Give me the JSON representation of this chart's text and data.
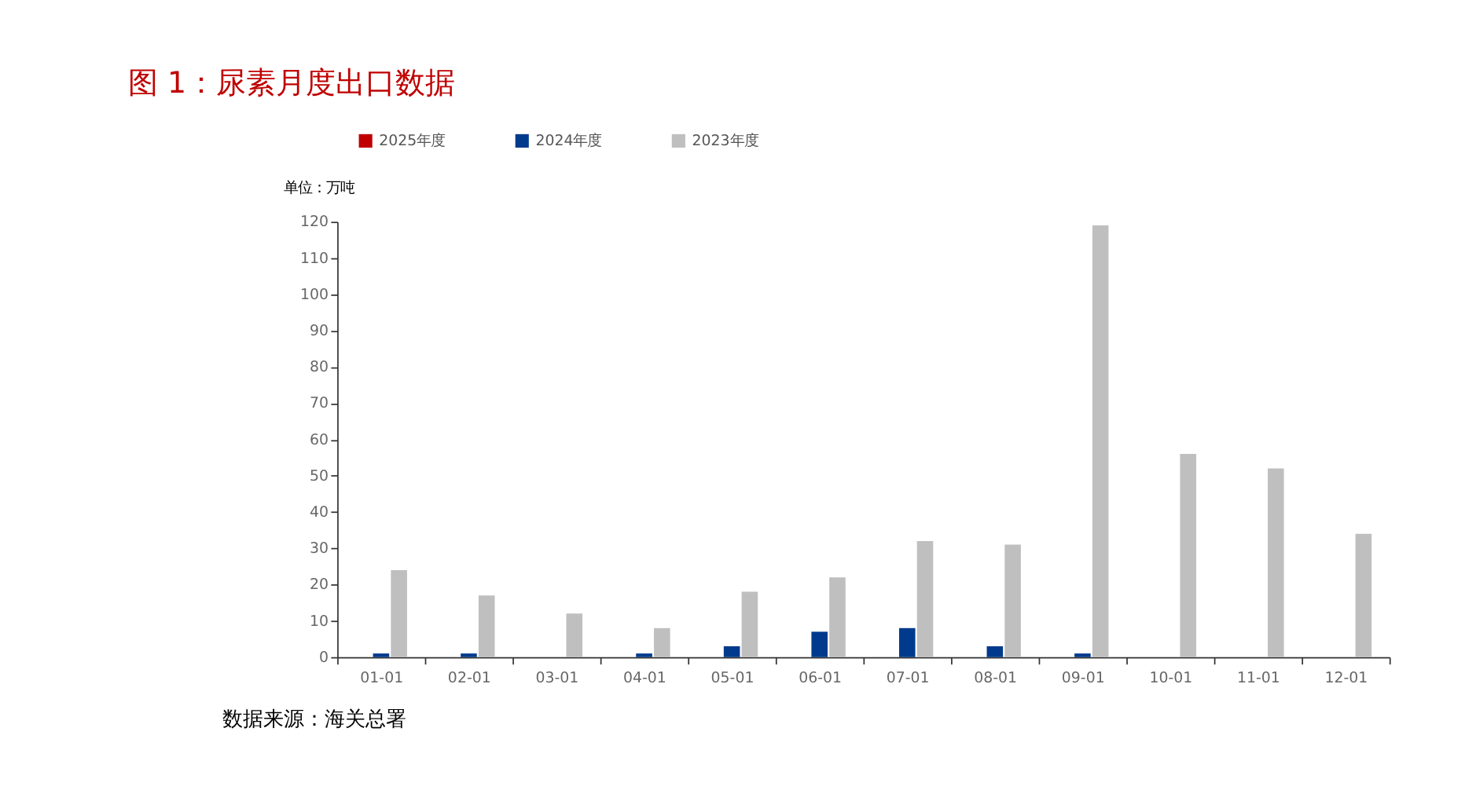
{
  "chart_data": {
    "type": "bar",
    "title": "图 1：尿素月度出口数据",
    "ylabel": "单位：万吨",
    "categories": [
      "01-01",
      "02-01",
      "03-01",
      "04-01",
      "05-01",
      "06-01",
      "07-01",
      "08-01",
      "09-01",
      "10-01",
      "11-01",
      "12-01"
    ],
    "series": [
      {
        "name": "2025年度",
        "color": "#c00000",
        "values": [
          null,
          null,
          null,
          null,
          null,
          null,
          null,
          null,
          null,
          null,
          null,
          null
        ]
      },
      {
        "name": "2024年度",
        "color": "#003a8c",
        "values": [
          1,
          1,
          null,
          1,
          3,
          7,
          8,
          3,
          1,
          null,
          null,
          null
        ]
      },
      {
        "name": "2023年度",
        "color": "#bfbfbf",
        "values": [
          24,
          17,
          12,
          8,
          18,
          22,
          32,
          31,
          119,
          56,
          52,
          34
        ]
      }
    ],
    "ylim": [
      0,
      120
    ],
    "yticks": [
      0,
      10,
      20,
      30,
      40,
      50,
      60,
      70,
      80,
      90,
      100,
      110,
      120
    ],
    "grid": false,
    "legend": "top",
    "annotations": [
      "数据来源：海关总署"
    ]
  }
}
